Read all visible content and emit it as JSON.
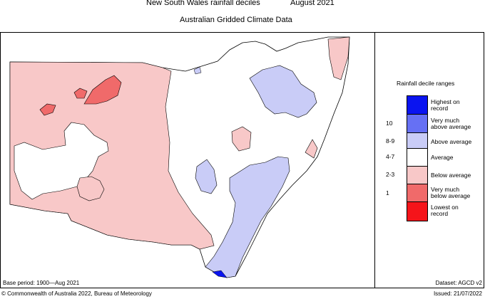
{
  "header": {
    "title": "New South Wales rainfall deciles",
    "period": "August 2021",
    "subtitle": "Australian Gridded Climate Data"
  },
  "legend": {
    "title": "Rainfall decile ranges",
    "items": [
      {
        "label_line1": "Highest on",
        "label_line2": "record",
        "range": "",
        "color": "#0a14f0"
      },
      {
        "label_line1": "Very much",
        "label_line2": "above average",
        "range": "10",
        "color": "#6670f4"
      },
      {
        "label_line1": "Above average",
        "label_line2": "",
        "range": "8-9",
        "color": "#c9ccf7"
      },
      {
        "label_line1": "Average",
        "label_line2": "",
        "range": "4-7",
        "color": "#ffffff"
      },
      {
        "label_line1": "Below average",
        "label_line2": "",
        "range": "2-3",
        "color": "#f8c8c8"
      },
      {
        "label_line1": "Very much",
        "label_line2": "below average",
        "range": "1",
        "color": "#f06a6a"
      },
      {
        "label_line1": "Lowest on",
        "label_line2": "record",
        "range": "",
        "color": "#f5141a"
      }
    ]
  },
  "footer": {
    "base_period": "Base period: 1900—Aug 2021",
    "dataset": "Dataset: AGCD v2",
    "copyright": "© Commonwealth of Australia 2022, Bureau of Meteorology",
    "issued": "Issued: 21/07/2022"
  },
  "colors": {
    "below_average": "#f8c8c8",
    "very_much_below": "#f06a6a",
    "above_average": "#c9ccf7",
    "highest_on_record": "#0a14f0",
    "outline": "#000000"
  }
}
